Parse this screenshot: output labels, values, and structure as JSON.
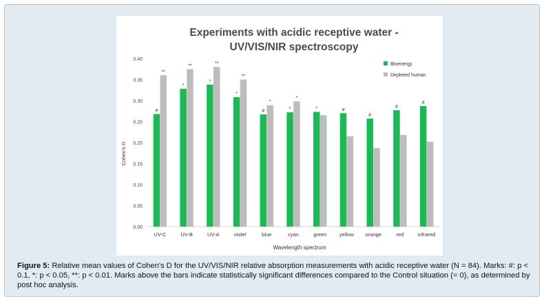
{
  "chart_data": {
    "type": "bar",
    "title_line1": "Experiments with acidic receptive water -",
    "title_line2": "UV/VIS/NIR spectroscopy",
    "xlabel": "Wavelength spectrum",
    "ylabel": "Cohen's D",
    "ylim": [
      0,
      0.4
    ],
    "yticks": [
      "0.00",
      "0.05",
      "0.10",
      "0.15",
      "0.20",
      "0.25",
      "0.30",
      "0.35",
      "0.40"
    ],
    "categories": [
      "UV-C",
      "UV-B",
      "UV-A",
      "violet",
      "blue",
      "cyan",
      "green",
      "yellow",
      "orange",
      "red",
      "infrared"
    ],
    "series": [
      {
        "name": "Bioenergy",
        "color": "#1db954",
        "values": [
          0.268,
          0.328,
          0.338,
          0.308,
          0.267,
          0.272,
          0.273,
          0.27,
          0.257,
          0.277,
          0.287
        ],
        "marks": [
          "#",
          "*",
          "*",
          "*",
          "#",
          "*",
          "*",
          "#",
          "#",
          "#",
          "#"
        ]
      },
      {
        "name": "Depleted human",
        "color": "#bdbdbd",
        "values": [
          0.36,
          0.375,
          0.38,
          0.35,
          0.289,
          0.298,
          0.265,
          0.215,
          0.187,
          0.218,
          0.202
        ],
        "marks": [
          "**",
          "**",
          "**",
          "**",
          "*",
          "*",
          "",
          "",
          "",
          "",
          ""
        ]
      }
    ],
    "legend_position": "top-right",
    "grid": false
  },
  "caption": {
    "label": "Figure 5:",
    "text": " Relative mean values of Cohen's D for the UV/VIS/NIR relative absorption measurements with acidic receptive water (N = 84). Marks: #: p < 0.1, *: p < 0.05, **: p < 0.01. Marks above the bars indicate statistically significant differences compared to the Control situation (= 0), as determined by post hoc analysis."
  }
}
